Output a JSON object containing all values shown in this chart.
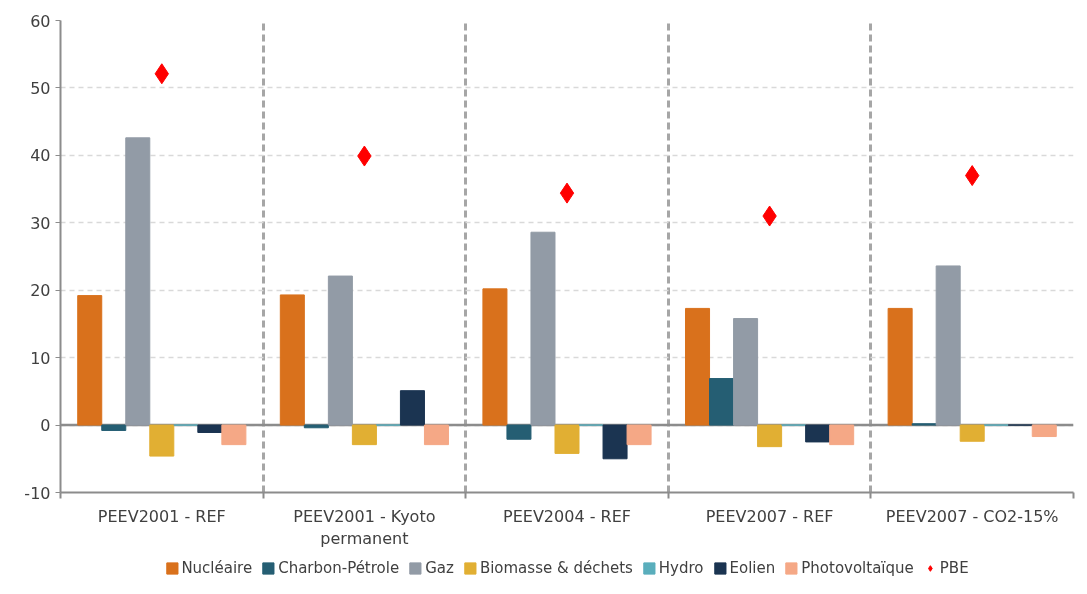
{
  "chart_data": {
    "type": "bar",
    "categories": [
      "PEEV2001 - REF",
      "PEEV2001 - Kyoto permanent",
      "PEEV2004 - REF",
      "PEEV2007 - REF",
      "PEEV2007 - CO2-15%"
    ],
    "series": [
      {
        "name": "Nucléaire",
        "color": "#d9711c",
        "values": [
          19.2,
          19.3,
          20.2,
          17.3,
          17.3
        ]
      },
      {
        "name": "Charbon-Pétrole",
        "color": "#255e73",
        "values": [
          -0.8,
          -0.4,
          -2.1,
          6.9,
          0.2
        ]
      },
      {
        "name": "Gaz",
        "color": "#929ba6",
        "values": [
          42.6,
          22.1,
          28.6,
          15.8,
          23.6
        ]
      },
      {
        "name": "Biomasse & déchets",
        "color": "#e1af33",
        "values": [
          -4.6,
          -2.9,
          -4.2,
          -3.2,
          -2.4
        ]
      },
      {
        "name": "Hydro",
        "color": "#5aaebc",
        "values": [
          0,
          0,
          0,
          0,
          0
        ]
      },
      {
        "name": "Eolien",
        "color": "#1b3451",
        "values": [
          -1.1,
          5.1,
          -5.0,
          -2.5,
          0
        ]
      },
      {
        "name": "Photovoltaïque",
        "color": "#f5a886",
        "values": [
          -2.9,
          -2.9,
          -2.9,
          -2.9,
          -1.7
        ]
      },
      {
        "name": "PBE",
        "type": "scatter",
        "marker": "diamond",
        "color": "#ff0000",
        "values": [
          52.1,
          39.9,
          34.4,
          31.0,
          37.0
        ]
      }
    ],
    "ylim": [
      -10,
      60
    ],
    "yticks": [
      -10,
      0,
      10,
      20,
      30,
      40,
      50,
      60
    ],
    "grid": true,
    "legend": "bottom",
    "ref_lines": [
      {
        "axis": "y",
        "value": 0,
        "color": "#8c8c8c"
      }
    ]
  }
}
